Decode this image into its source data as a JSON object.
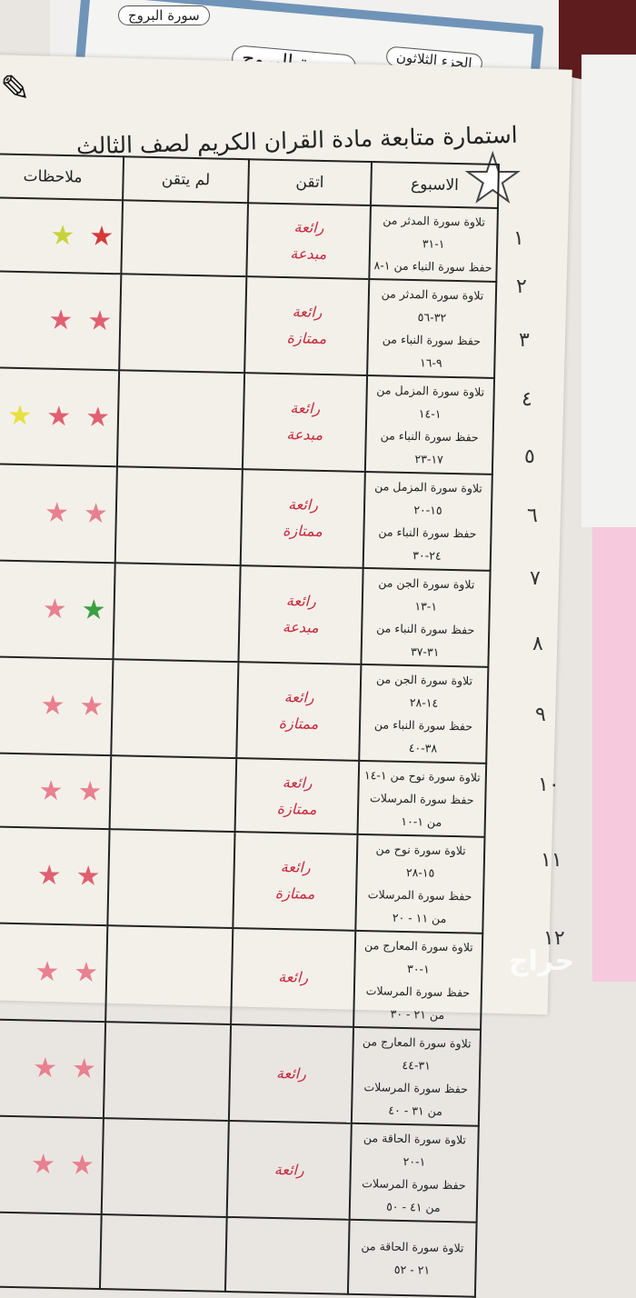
{
  "background": {
    "surah_label_small": "سورة البروج",
    "surah_title": "سورة البروج",
    "juz_label": "الجزء الثلاثون"
  },
  "form": {
    "title": "استمارة متابعة مادة القران الكريم لصف الثالث",
    "headers": {
      "week": "الاسبوع",
      "mastered": "اتقن",
      "not_mastered": "لم يتقن",
      "notes": "ملاحظات"
    },
    "rows": [
      {
        "num": "١",
        "lines": [
          "تلاوة سورة المدثر من ١-٣١",
          "حفظ سورة النباء من ١-٨"
        ],
        "grades": [
          "رائعة",
          "مبدعة"
        ],
        "stars": [
          "#d43a3a",
          "#c8d23a"
        ]
      },
      {
        "num": "٢",
        "lines": [
          "تلاوة سورة المدثر من ٣٢-٥٦",
          "حفظ سورة النباء من ٩-١٦"
        ],
        "grades": [
          "رائعة",
          "ممتازة"
        ],
        "stars": [
          "#e06070",
          "#e06070"
        ]
      },
      {
        "num": "٣",
        "lines": [
          "تلاوة سورة المزمل من ١-١٤",
          "حفظ سورة النباء من ١٧-٢٣"
        ],
        "grades": [
          "رائعة",
          "مبدعة"
        ],
        "stars": [
          "#e06070",
          "#e06070",
          "#e8e040"
        ]
      },
      {
        "num": "٤",
        "lines": [
          "تلاوة سورة المزمل من ١٥-٢٠",
          "حفظ سورة النباء من ٢٤-٣٠"
        ],
        "grades": [
          "رائعة",
          "ممتازة"
        ],
        "stars": [
          "#e88090",
          "#e88090"
        ]
      },
      {
        "num": "٥",
        "lines": [
          "تلاوة سورة الجن من ١-١٣",
          "حفظ سورة النباء من ٣١-٣٧"
        ],
        "grades": [
          "رائعة",
          "مبدعة"
        ],
        "stars": [
          "#3aa040",
          "#e88090"
        ]
      },
      {
        "num": "٦",
        "lines": [
          "تلاوة سورة الجن من ١٤-٢٨",
          "حفظ سورة النباء من ٣٨-٤٠"
        ],
        "grades": [
          "رائعة",
          "ممتازة"
        ],
        "stars": [
          "#e88090",
          "#e88090"
        ]
      },
      {
        "num": "٧",
        "lines": [
          "تلاوة سورة نوح من ١-١٤",
          "حفظ سورة المرسلات من ١-١٠"
        ],
        "grades": [
          "رائعة",
          "ممتازة"
        ],
        "stars": [
          "#e88090",
          "#e88090"
        ]
      },
      {
        "num": "٨",
        "lines": [
          "تلاوة سورة نوح من ١٥-٢٨",
          "حفظ سورة المرسلات من ١١ - ٢٠"
        ],
        "grades": [
          "رائعة",
          "ممتازة"
        ],
        "stars": [
          "#e06070",
          "#e06070"
        ]
      },
      {
        "num": "٩",
        "lines": [
          "تلاوة سورة المعارج من ١-٣٠",
          "حفظ سورة المرسلات من ٢١ - ٣٠"
        ],
        "grades": [
          "رائعة"
        ],
        "stars": [
          "#e88090",
          "#e88090"
        ]
      },
      {
        "num": "١٠",
        "lines": [
          "تلاوة سورة المعارج من ٣١-٤٤",
          "حفظ سورة المرسلات من ٣١ - ٤٠"
        ],
        "grades": [
          "رائعة"
        ],
        "stars": [
          "#e88090",
          "#e88090"
        ]
      },
      {
        "num": "١١",
        "lines": [
          "تلاوة سورة الحاقة من ١-٢٠",
          "حفظ سورة المرسلات من ٤١ - ٥٠"
        ],
        "grades": [
          "رائعة"
        ],
        "stars": [
          "#e88090",
          "#e88090"
        ]
      },
      {
        "num": "١٢",
        "lines": [
          "تلاوة سورة الحاقة من",
          "٢١ - ٥٢"
        ],
        "grades": [],
        "stars": []
      }
    ]
  },
  "watermark": "حراج"
}
